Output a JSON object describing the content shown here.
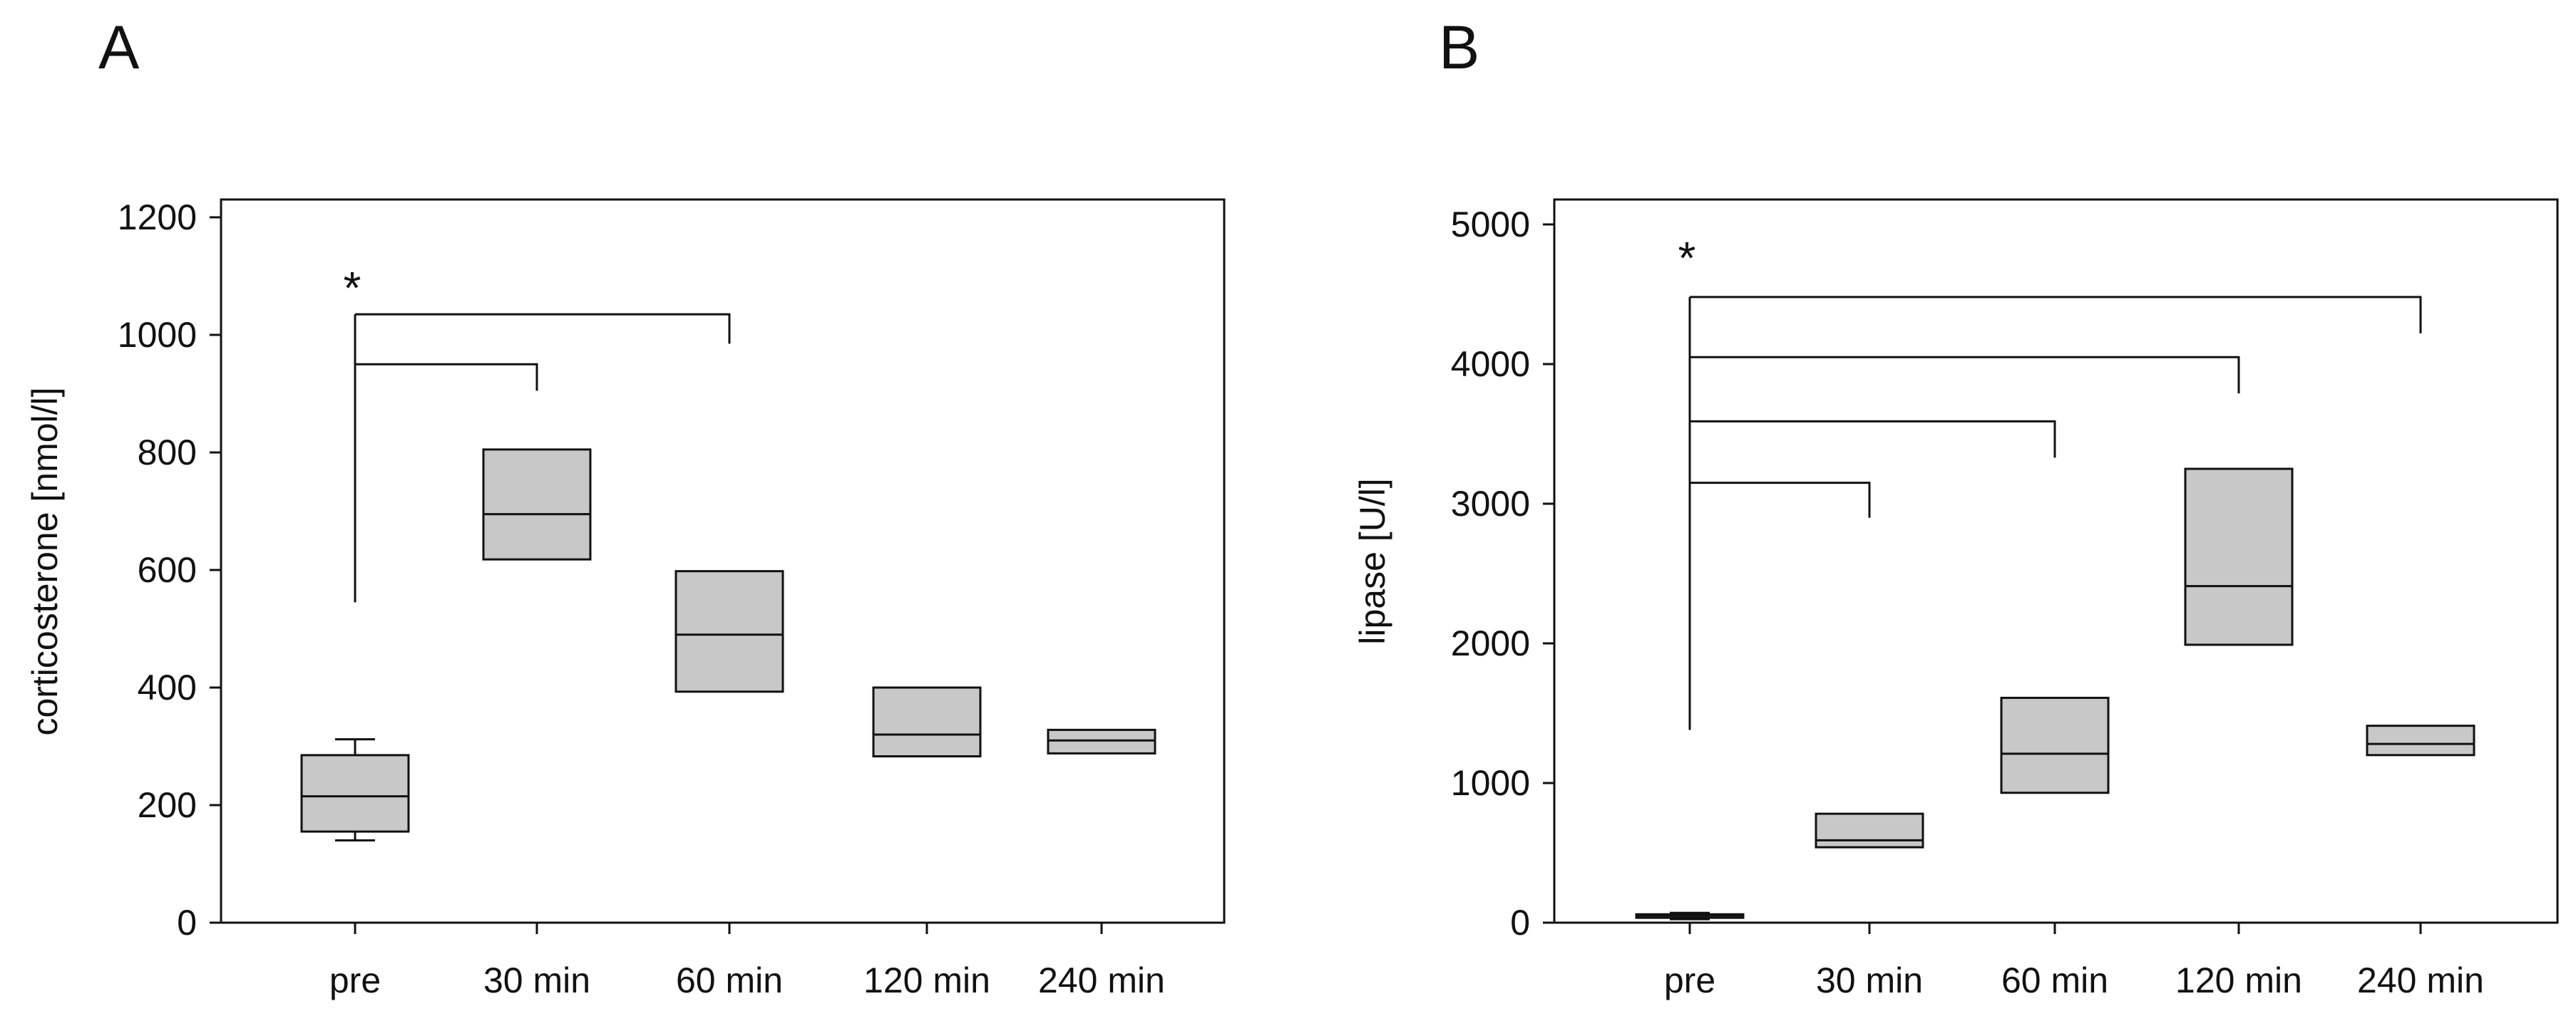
{
  "chart_data": [
    {
      "panel": "A",
      "type": "box",
      "title": "",
      "xlabel": "",
      "ylabel": "corticosterone [nmol/l]",
      "ylim": [
        0,
        1200
      ],
      "yticks": [
        0,
        200,
        400,
        600,
        800,
        1000,
        1200
      ],
      "categories": [
        "pre",
        "30 min",
        "60 min",
        "120 min",
        "240 min"
      ],
      "colors": {
        "box_fill": "#c8c8c8",
        "stroke": "#111111"
      },
      "boxes": [
        {
          "category": "pre",
          "q1": 155,
          "median": 215,
          "q3": 285,
          "whisker_low": 140,
          "whisker_high": 312
        },
        {
          "category": "30 min",
          "q1": 618,
          "median": 695,
          "q3": 805
        },
        {
          "category": "60 min",
          "q1": 393,
          "median": 490,
          "q3": 598
        },
        {
          "category": "120 min",
          "q1": 283,
          "median": 320,
          "q3": 400
        },
        {
          "category": "240 min",
          "q1": 288,
          "median": 310,
          "q3": 328
        }
      ],
      "significance": {
        "marker": "*",
        "from": "pre",
        "from_start_y": 545,
        "marker_y": 1090,
        "brackets": [
          {
            "to": "30 min",
            "y": 950,
            "drop_to": 905
          },
          {
            "to": "60 min",
            "y": 1035,
            "drop_to": 985
          }
        ]
      }
    },
    {
      "panel": "B",
      "type": "box",
      "title": "",
      "xlabel": "",
      "ylabel": "lipase [U/l]",
      "ylim": [
        0,
        5000
      ],
      "yticks": [
        0,
        1000,
        2000,
        3000,
        4000,
        5000
      ],
      "categories": [
        "pre",
        "30 min",
        "60 min",
        "120 min",
        "240 min"
      ],
      "colors": {
        "box_fill": "#c8c8c8",
        "stroke": "#111111"
      },
      "boxes": [
        {
          "category": "pre",
          "q1": 35,
          "median": 50,
          "q3": 60,
          "whisker_low": 25,
          "whisker_high": 70
        },
        {
          "category": "30 min",
          "q1": 540,
          "median": 590,
          "q3": 780
        },
        {
          "category": "60 min",
          "q1": 930,
          "median": 1210,
          "q3": 1610
        },
        {
          "category": "120 min",
          "q1": 1990,
          "median": 2410,
          "q3": 3250
        },
        {
          "category": "240 min",
          "q1": 1200,
          "median": 1280,
          "q3": 1410
        }
      ],
      "significance": {
        "marker": "*",
        "from": "pre",
        "from_start_y": 1380,
        "marker_y": 4800,
        "brackets": [
          {
            "to": "30 min",
            "y": 3150,
            "drop_to": 2900
          },
          {
            "to": "60 min",
            "y": 3590,
            "drop_to": 3330
          },
          {
            "to": "120 min",
            "y": 4050,
            "drop_to": 3790
          },
          {
            "to": "240 min",
            "y": 4480,
            "drop_to": 4220
          }
        ]
      }
    }
  ]
}
